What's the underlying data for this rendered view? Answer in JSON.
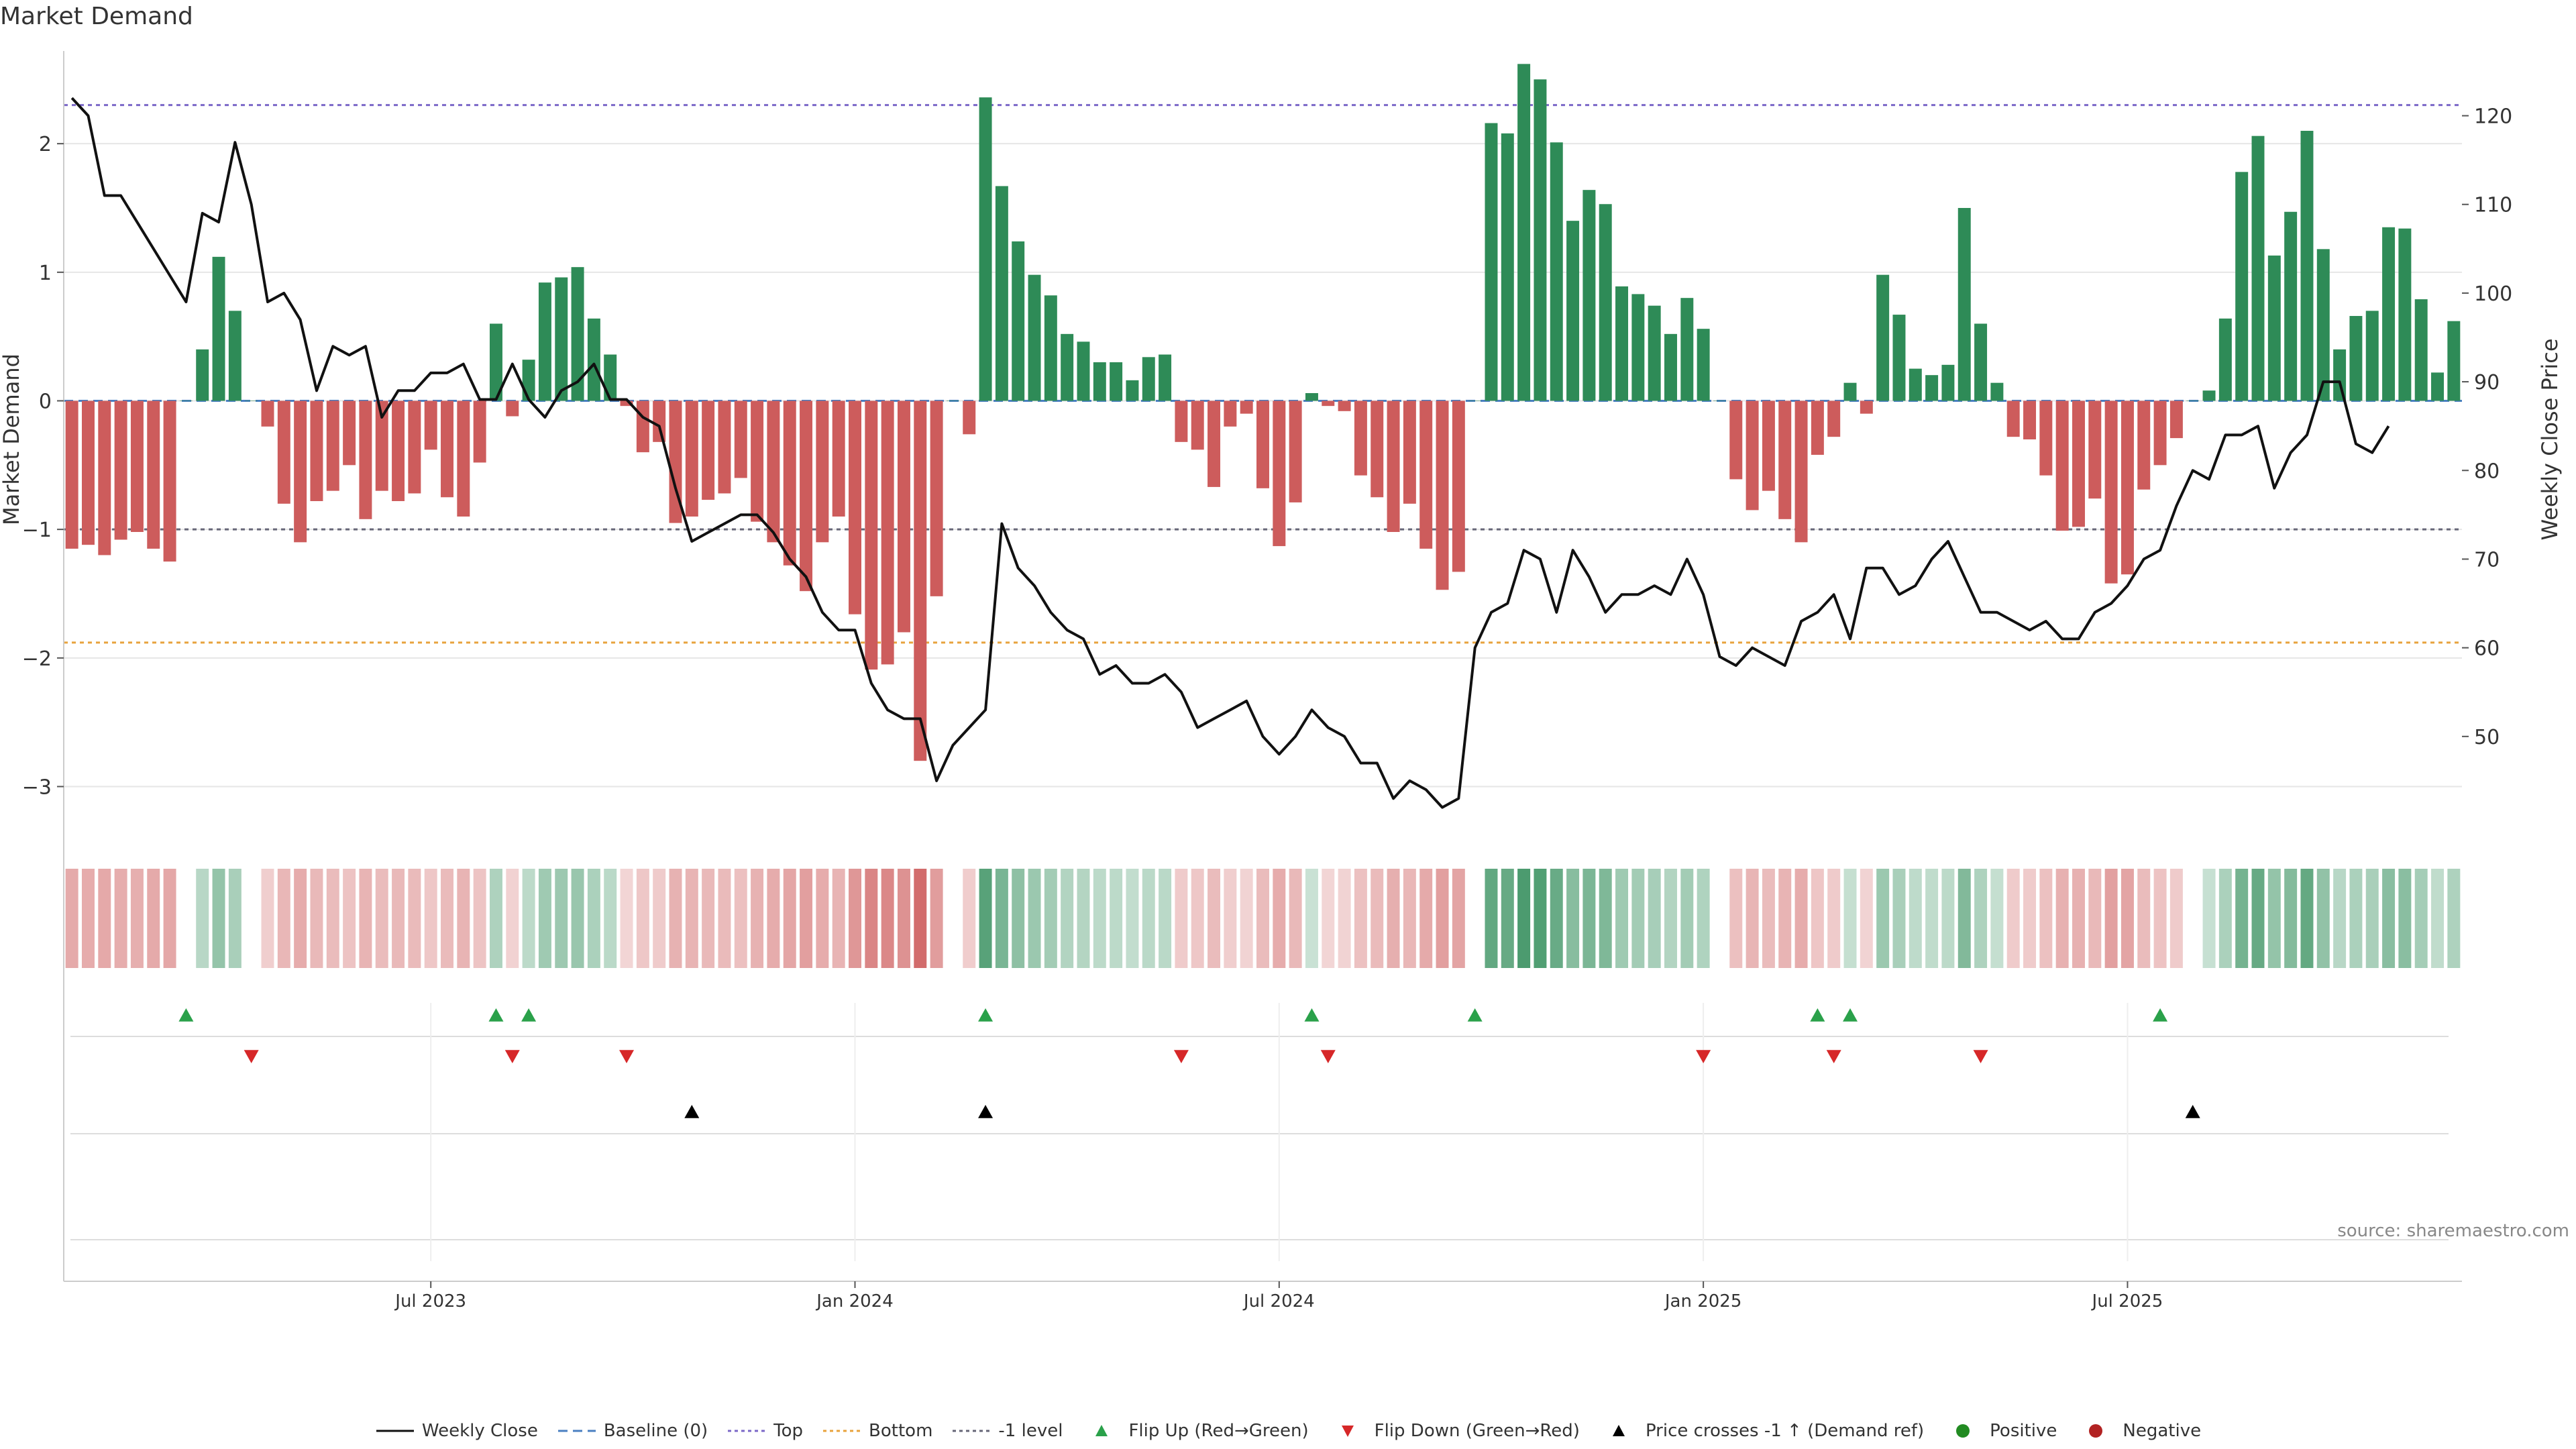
{
  "title": "Market Demand",
  "source": "source: sharemaestro.com",
  "colors": {
    "positive": "#2e8b57",
    "negative": "#cd5c5c",
    "price": "#111111",
    "top": "#7b68c8",
    "bottom": "#e8a33d",
    "minus_one": "#666677",
    "baseline": "#4a7fc1",
    "flip_up": "#2aa14a",
    "flip_down": "#d62728",
    "cross": "#000000",
    "grid": "#e6e6e6"
  },
  "chart_data": {
    "type": "bar",
    "title": "Market Demand",
    "ylabel": "Market Demand",
    "y2label": "Weekly Close Price",
    "ylim": [
      -3.3,
      2.7
    ],
    "y2lim": [
      40,
      127
    ],
    "yticks": [
      "2",
      "1",
      "0",
      "−1",
      "−2",
      "−3"
    ],
    "ytick_values": [
      2,
      1,
      0,
      -1,
      -2,
      -3
    ],
    "y2ticks": [
      "120",
      "110",
      "100",
      "90",
      "80",
      "70",
      "60",
      "50"
    ],
    "y2tick_values": [
      120,
      110,
      100,
      90,
      80,
      70,
      60,
      50
    ],
    "xticks": [
      "Jul 2023",
      "Jan 2024",
      "Jul 2024",
      "Jan 2025",
      "Jul 2025"
    ],
    "xtick_index": [
      22,
      48,
      74,
      100,
      126
    ],
    "reference_levels": {
      "top": 2.3,
      "bottom": -1.88,
      "minus_one": -1
    },
    "demand": [
      -1.15,
      -1.12,
      -1.2,
      -1.08,
      -1.02,
      -1.15,
      -1.25,
      0,
      0.4,
      1.12,
      0.7,
      0,
      -0.2,
      -0.8,
      -1.1,
      -0.78,
      -0.7,
      -0.5,
      -0.92,
      -0.7,
      -0.78,
      -0.72,
      -0.38,
      -0.75,
      -0.9,
      -0.48,
      0.6,
      -0.12,
      0.32,
      0.92,
      0.96,
      1.04,
      0.64,
      0.36,
      -0.04,
      -0.4,
      -0.32,
      -0.95,
      -0.9,
      -0.77,
      -0.72,
      -0.6,
      -0.94,
      -1.1,
      -1.28,
      -1.48,
      -1.1,
      -0.9,
      -1.66,
      -2.09,
      -2.05,
      -1.8,
      -2.8,
      -1.52,
      0,
      -0.26,
      2.36,
      1.67,
      1.24,
      0.98,
      0.82,
      0.52,
      0.46,
      0.3,
      0.3,
      0.16,
      0.34,
      0.36,
      -0.32,
      -0.38,
      -0.67,
      -0.2,
      -0.1,
      -0.68,
      -1.13,
      -0.79,
      0.06,
      -0.04,
      -0.08,
      -0.58,
      -0.75,
      -1.02,
      -0.8,
      -1.15,
      -1.47,
      -1.33,
      0,
      2.16,
      2.08,
      2.62,
      2.5,
      2.01,
      1.4,
      1.64,
      1.53,
      0.89,
      0.83,
      0.74,
      0.52,
      0.8,
      0.56,
      0,
      -0.61,
      -0.85,
      -0.7,
      -0.92,
      -1.1,
      -0.42,
      -0.28,
      0.14,
      -0.1,
      0.98,
      0.67,
      0.25,
      0.2,
      0.28,
      1.5,
      0.6,
      0.14,
      -0.28,
      -0.3,
      -0.58,
      -1.01,
      -0.98,
      -0.76,
      -1.42,
      -1.35,
      -0.69,
      -0.5,
      -0.29,
      0,
      0.08,
      0.64,
      1.78,
      2.06,
      1.13,
      1.47,
      2.1,
      1.18,
      0.4,
      0.66,
      0.7,
      1.35,
      1.34,
      0.79,
      0.22,
      0.62
    ],
    "price": [
      122,
      120,
      111,
      111,
      108,
      105,
      102,
      99,
      109,
      108,
      117,
      110,
      99,
      100,
      97,
      89,
      94,
      93,
      94,
      86,
      89,
      89,
      91,
      91,
      92,
      88,
      88,
      92,
      88,
      86,
      89,
      90,
      92,
      88,
      88,
      86,
      85,
      78,
      72,
      73,
      74,
      75,
      75,
      73,
      70,
      68,
      64,
      62,
      62,
      56,
      53,
      52,
      52,
      45,
      49,
      51,
      53,
      74,
      69,
      67,
      64,
      62,
      61,
      57,
      58,
      56,
      56,
      57,
      55,
      51,
      52,
      53,
      54,
      50,
      48,
      50,
      53,
      51,
      50,
      47,
      47,
      43,
      45,
      44,
      42,
      43,
      60,
      64,
      65,
      71,
      70,
      64,
      71,
      68,
      64,
      66,
      66,
      67,
      66,
      70,
      66,
      59,
      58,
      60,
      59,
      58,
      63,
      64,
      66,
      61,
      69,
      69,
      66,
      67,
      70,
      72,
      68,
      64,
      64,
      63,
      62,
      63,
      61,
      61,
      64,
      65,
      67,
      70,
      71,
      76,
      80,
      79,
      84,
      84,
      85,
      78,
      82,
      84,
      90,
      90,
      83,
      82,
      85
    ],
    "flip_up_index": [
      7,
      26,
      28,
      56,
      76,
      86,
      107,
      109,
      128
    ],
    "flip_down_index": [
      11,
      27,
      34,
      68,
      77,
      100,
      108,
      117
    ],
    "cross_up_index": [
      38,
      56,
      130
    ]
  },
  "legend": [
    {
      "label": "Weekly Close",
      "marker": "line"
    },
    {
      "label": "Baseline (0)",
      "marker": "dash"
    },
    {
      "label": "Top",
      "marker": "dot-top"
    },
    {
      "label": "Bottom",
      "marker": "dot-bottom"
    },
    {
      "label": "-1 level",
      "marker": "dot-minus"
    },
    {
      "label": "Flip Up (Red→Green)",
      "marker": "tri-up-green"
    },
    {
      "label": "Flip Down (Green→Red)",
      "marker": "tri-down-red"
    },
    {
      "label": "Price crosses -1 ↑ (Demand ref)",
      "marker": "tri-up-black"
    },
    {
      "label": "Positive",
      "marker": "circle-green"
    },
    {
      "label": "Negative",
      "marker": "circle-red"
    }
  ]
}
